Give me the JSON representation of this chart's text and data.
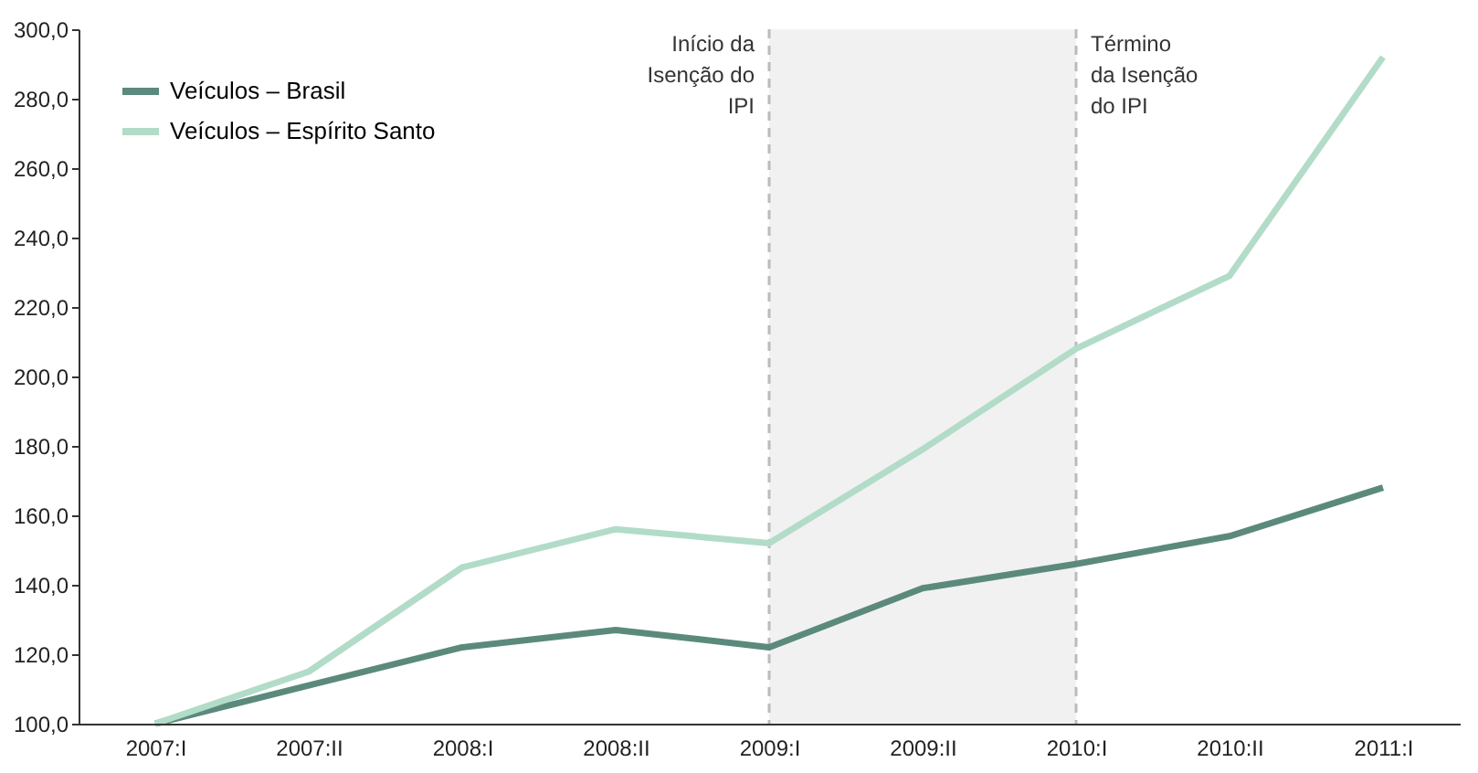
{
  "chart_data": {
    "type": "line",
    "categories": [
      "2007:I",
      "2007:II",
      "2008:I",
      "2008:II",
      "2009:I",
      "2009:II",
      "2010:I",
      "2010:II",
      "2011:I"
    ],
    "series": [
      {
        "name": "Veículos – Brasil",
        "color": "#5b8a7d",
        "values": [
          100,
          111,
          122,
          127,
          122,
          139,
          146,
          154,
          168
        ]
      },
      {
        "name": "Veículos – Espírito Santo",
        "color": "#b2dcc7",
        "values": [
          100,
          115,
          145,
          156,
          152,
          179,
          208,
          229,
          292
        ]
      }
    ],
    "ylim": [
      100,
      300
    ],
    "yticks": [
      {
        "value": 100,
        "label": "100,0"
      },
      {
        "value": 120,
        "label": "120,0"
      },
      {
        "value": 140,
        "label": "140,0"
      },
      {
        "value": 160,
        "label": "160,0"
      },
      {
        "value": 180,
        "label": "180,0"
      },
      {
        "value": 200,
        "label": "200,0"
      },
      {
        "value": 220,
        "label": "220,0"
      },
      {
        "value": 240,
        "label": "240,0"
      },
      {
        "value": 260,
        "label": "260,0"
      },
      {
        "value": 280,
        "label": "280,0"
      },
      {
        "value": 300,
        "label": "300,0"
      }
    ],
    "ref_lines": [
      {
        "axis": "x",
        "value": "2009:I",
        "label": "Início da\nIsenção do\nIPI",
        "color": "#bbbbbb",
        "line_style": "dashed"
      },
      {
        "axis": "x",
        "value": "2010:I",
        "label": "Término\nda Isenção\ndo IPI",
        "color": "#bbbbbb",
        "line_style": "dashed"
      }
    ],
    "bands": [
      {
        "axis": "x",
        "from": "2009:I",
        "to": "2010:I",
        "color": "#f1f1f1"
      }
    ],
    "legend": "top left",
    "grid": false,
    "marker": "none",
    "line_style": "solid"
  }
}
